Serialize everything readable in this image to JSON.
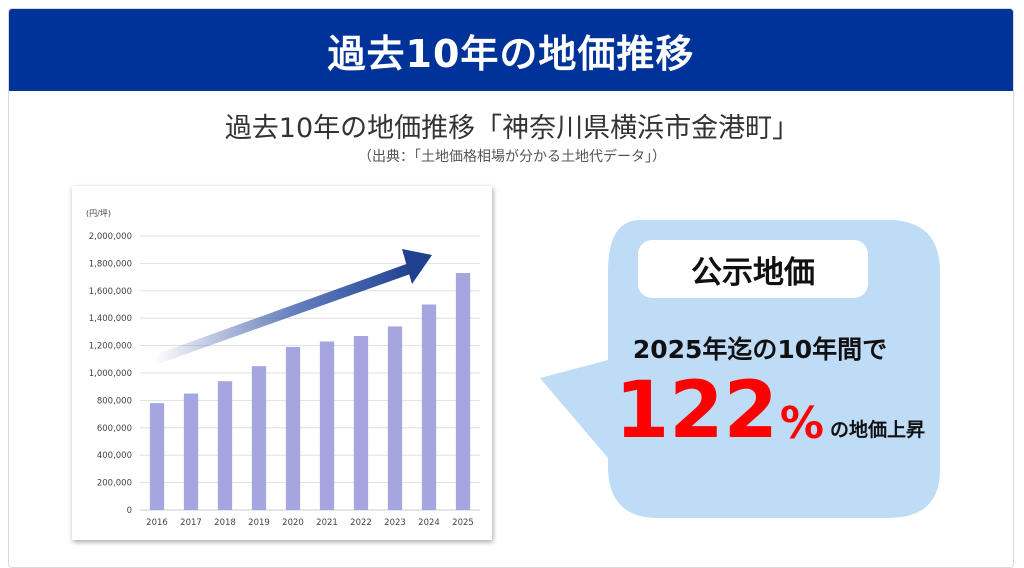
{
  "header": {
    "title": "過去10年の地価推移"
  },
  "subtitle": "過去10年の地価推移「神奈川県横浜市金港町」",
  "source": "（出典：「土地価格相場が分かる土地代データ」）",
  "colors": {
    "header_bg": "#003399",
    "bar": "#a5a5e0",
    "arrow": "#1f3f8f",
    "bubble": "#bfdcf7",
    "highlight": "#ff0000"
  },
  "callout": {
    "label": "公示地価",
    "line1": "2025年迄の10年間で",
    "value": "122",
    "unit": "%",
    "tail": "の地価上昇"
  },
  "chart_data": {
    "type": "bar",
    "unit_label": "(円/坪)",
    "categories": [
      "2016",
      "2017",
      "2018",
      "2019",
      "2020",
      "2021",
      "2022",
      "2023",
      "2024",
      "2025"
    ],
    "values": [
      780000,
      850000,
      940000,
      1050000,
      1190000,
      1230000,
      1270000,
      1340000,
      1500000,
      1730000
    ],
    "ylim": [
      0,
      2000000
    ],
    "yticks": [
      "0",
      "200,000",
      "400,000",
      "600,000",
      "800,000",
      "1,000,000",
      "1,200,000",
      "1,400,000",
      "1,600,000",
      "1,800,000",
      "2,000,000"
    ],
    "grid": true
  }
}
